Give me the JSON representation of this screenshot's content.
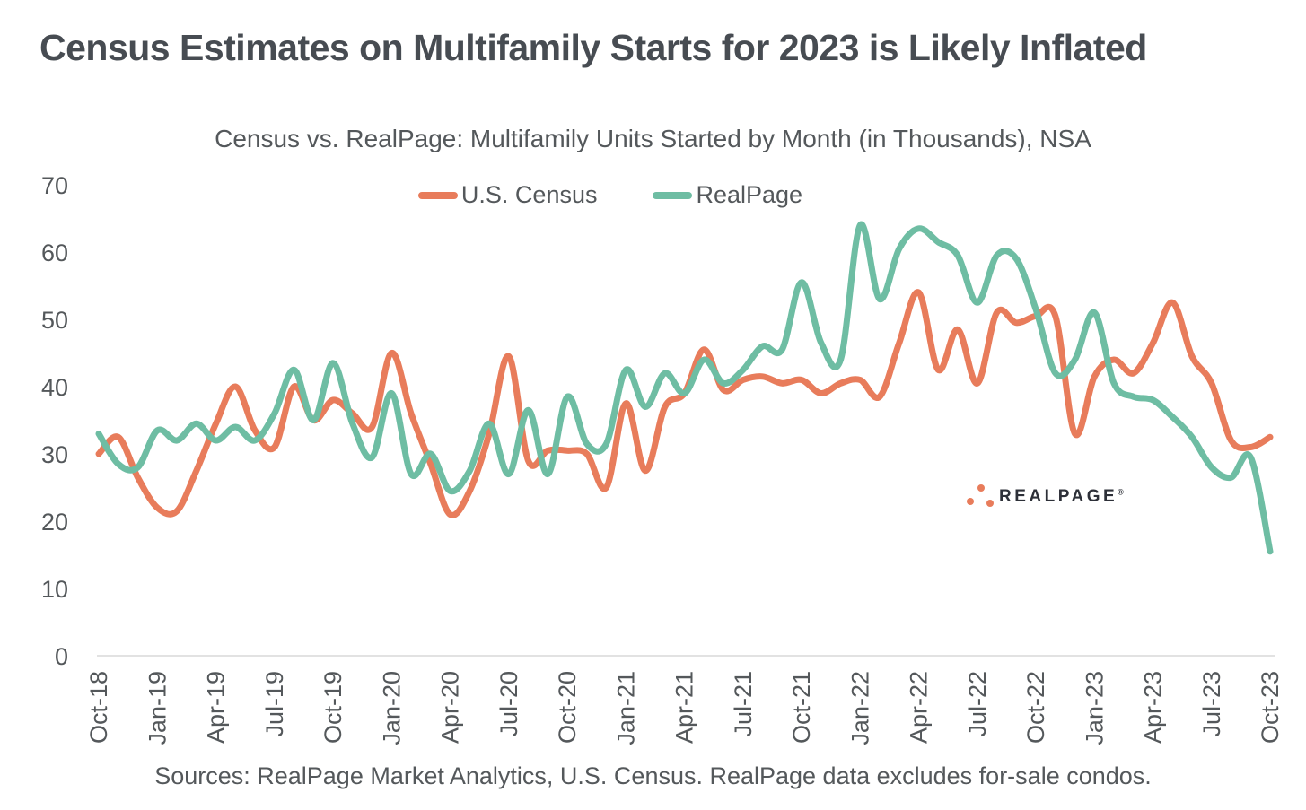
{
  "title": "Census Estimates on Multifamily Starts for 2023 is Likely Inflated",
  "chart": {
    "subtitle": "Census vs. RealPage: Multifamily Units Started by Month (in Thousands), NSA",
    "legend": [
      {
        "label": "U.S. Census",
        "color": "#e87c5b"
      },
      {
        "label": "RealPage",
        "color": "#6ebda3"
      }
    ]
  },
  "colors": {
    "census_line": "#e87c5b",
    "realpage_line": "#6ebda3",
    "axis_line": "#d9d9d9",
    "tick_text": "#54585b",
    "title_text": "#474c52",
    "logo_dots": "#e87c5b",
    "logo_text": "#2d3038"
  },
  "logo": {
    "text": "REALPAGE",
    "mark": "®"
  },
  "footer": {
    "source_note": "Sources: RealPage Market Analytics, U.S. Census. RealPage data excludes for-sale condos."
  },
  "chart_data": {
    "type": "line",
    "title": "Census vs. RealPage: Multifamily Units Started by Month (in Thousands), NSA",
    "xlabel": "",
    "ylabel": "",
    "ylim": [
      0,
      70
    ],
    "yticks": [
      0,
      10,
      20,
      30,
      40,
      50,
      60,
      70
    ],
    "grid": false,
    "legend_position": "top-center",
    "x_tick_every": 3,
    "x": [
      "Oct-18",
      "Nov-18",
      "Dec-18",
      "Jan-19",
      "Feb-19",
      "Mar-19",
      "Apr-19",
      "May-19",
      "Jun-19",
      "Jul-19",
      "Aug-19",
      "Sep-19",
      "Oct-19",
      "Nov-19",
      "Dec-19",
      "Jan-20",
      "Feb-20",
      "Mar-20",
      "Apr-20",
      "May-20",
      "Jun-20",
      "Jul-20",
      "Aug-20",
      "Sep-20",
      "Oct-20",
      "Nov-20",
      "Dec-20",
      "Jan-21",
      "Feb-21",
      "Mar-21",
      "Apr-21",
      "May-21",
      "Jun-21",
      "Jul-21",
      "Aug-21",
      "Sep-21",
      "Oct-21",
      "Nov-21",
      "Dec-21",
      "Jan-22",
      "Feb-22",
      "Mar-22",
      "Apr-22",
      "May-22",
      "Jun-22",
      "Jul-22",
      "Aug-22",
      "Sep-22",
      "Oct-22",
      "Nov-22",
      "Dec-22",
      "Jan-23",
      "Feb-23",
      "Mar-23",
      "Apr-23",
      "May-23",
      "Jun-23",
      "Jul-23",
      "Aug-23",
      "Sep-23",
      "Oct-23"
    ],
    "series": [
      {
        "name": "U.S. Census",
        "color": "#e87c5b",
        "values": [
          30,
          32.5,
          26.5,
          22,
          21.5,
          27.5,
          34.5,
          40,
          33.5,
          31,
          40,
          35,
          38,
          36,
          34,
          45,
          36,
          28.5,
          21,
          24.5,
          33,
          44.5,
          29,
          30.5,
          30.5,
          30,
          25,
          37.5,
          27.5,
          37,
          39,
          45.5,
          39.5,
          41,
          41.5,
          40.5,
          41,
          39,
          40.5,
          41,
          38.5,
          46.5,
          54,
          42.5,
          48.5,
          40.5,
          51,
          49.5,
          50.5,
          50.5,
          33,
          41.5,
          44,
          42,
          46.5,
          52.5,
          44.5,
          40.5,
          32,
          31,
          32.5
        ]
      },
      {
        "name": "RealPage",
        "color": "#6ebda3",
        "values": [
          33,
          28.5,
          28,
          33.5,
          32,
          34.5,
          32,
          34,
          32,
          36,
          42.5,
          35,
          43.5,
          34.5,
          29.5,
          39,
          27,
          30,
          24.5,
          27.5,
          34.5,
          27,
          36.5,
          27,
          38.5,
          31.5,
          31.5,
          42.5,
          37,
          42,
          39,
          44,
          40.5,
          42.5,
          46,
          45.5,
          55.5,
          46.5,
          44,
          64,
          53,
          60.5,
          63.5,
          61.5,
          59.5,
          52.5,
          59.5,
          59,
          51.5,
          42,
          44,
          51,
          40.5,
          38.5,
          38,
          35.5,
          32.5,
          28,
          26.5,
          29.5,
          15.5
        ]
      }
    ]
  }
}
